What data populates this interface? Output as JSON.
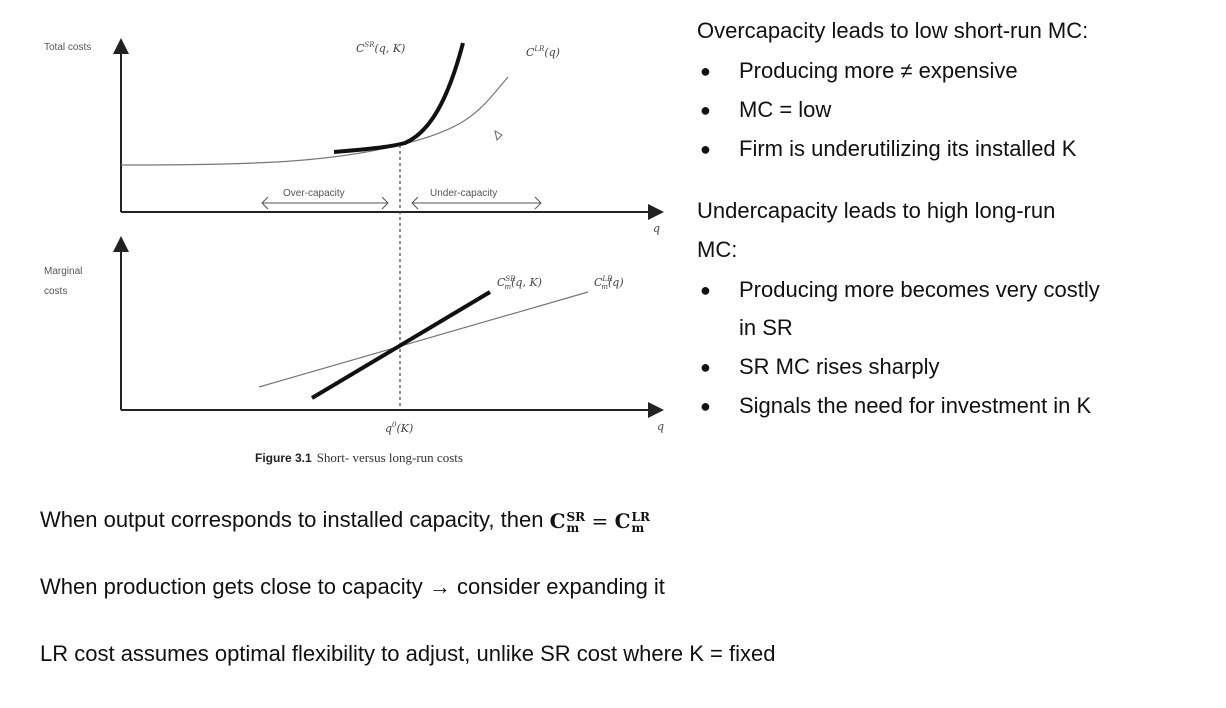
{
  "figure": {
    "top_ylabel": "Total costs",
    "bottom_ylabel_line1": "Marginal",
    "bottom_ylabel_line2": "costs",
    "xlabel": "q",
    "csr_label": "C",
    "csr_sup": "SR",
    "csr_args": "(q, K)",
    "clr_label": "C",
    "clr_sup": "LR",
    "clr_args": "(q)",
    "mcsr_sup": "SR",
    "mcsr_sub": "m",
    "mcsr_args": "(q, K)",
    "mclr_sup": "LR",
    "mclr_sub": "m",
    "mclr_args": "(q)",
    "over_capacity": "Over-capacity",
    "under_capacity": "Under-capacity",
    "q0_label": "q",
    "q0_sup": "0",
    "q0_args": "(K)",
    "caption_num": "Figure 3.1",
    "caption_text": "Short- versus long-run costs"
  },
  "right": {
    "over_heading_bold": "Overcapacity",
    "over_heading_rest": " leads to low short-run MC:",
    "over_bullets": [
      "Producing more ≠ expensive",
      "MC = low",
      "Firm is underutilizing its installed K"
    ],
    "under_heading_bold": "Undercapacity",
    "under_heading_rest": " leads to high long-run",
    "under_heading_line2": "MC:",
    "under_bullets": [
      "Producing more becomes very costly",
      "in SR",
      "SR MC rises sharply",
      "Signals the need for investment in K"
    ]
  },
  "bottom": {
    "line1": "When output corresponds to installed capacity, then ",
    "formula_c": "C",
    "formula_lhs_sup": "SR",
    "formula_lhs_sub": "m",
    "formula_eq": " = ",
    "formula_rhs_sup": "LR",
    "formula_rhs_sub": "m",
    "line2_a": "When production gets close to capacity ",
    "line2_arrow": "→",
    "line2_b": " consider expanding it",
    "line3": "LR cost assumes optimal flexibility to adjust, unlike SR cost where K = fixed"
  }
}
